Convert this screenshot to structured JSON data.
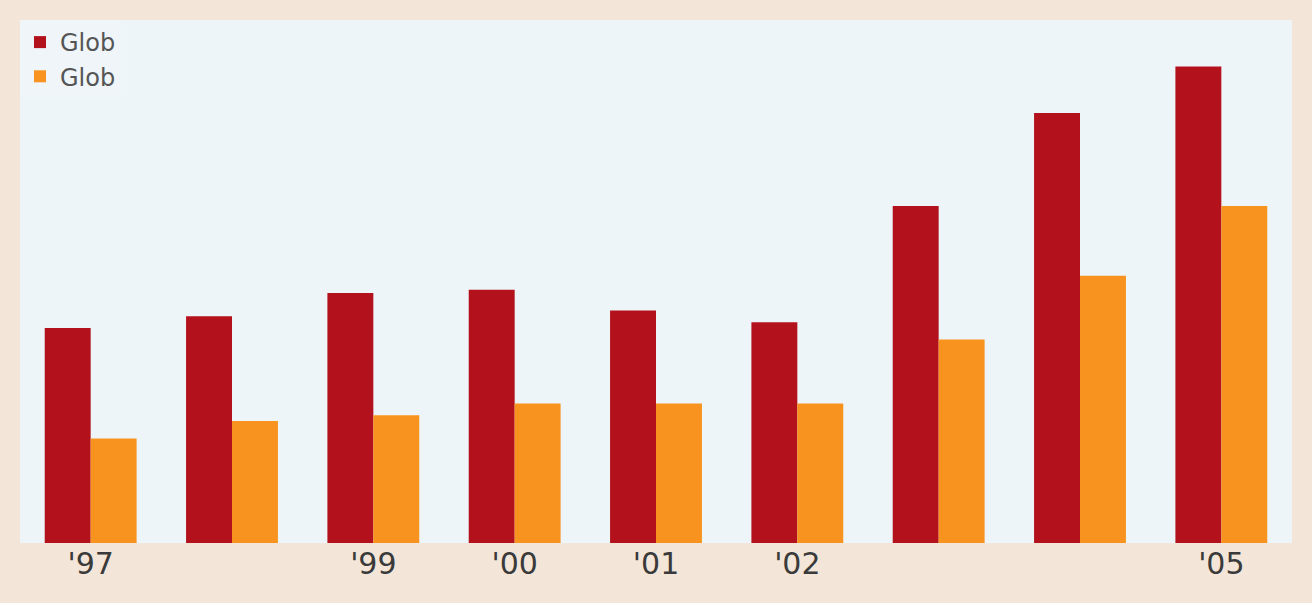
{
  "chart_data": {
    "type": "bar",
    "categories": [
      "'97",
      null,
      "'99",
      "'00",
      "'01",
      "'02",
      null,
      null,
      "'05"
    ],
    "series": [
      {
        "name": "Glob",
        "color": "#b3121c",
        "values": [
          185,
          195,
          215,
          218,
          200,
          190,
          290,
          370,
          410
        ]
      },
      {
        "name": "Glob",
        "color": "#f7931e",
        "values": [
          90,
          105,
          110,
          120,
          120,
          120,
          175,
          230,
          290
        ]
      }
    ],
    "ylim": [
      0,
      450
    ],
    "grid": false,
    "legend": "top-left",
    "tick_labels": "x"
  }
}
